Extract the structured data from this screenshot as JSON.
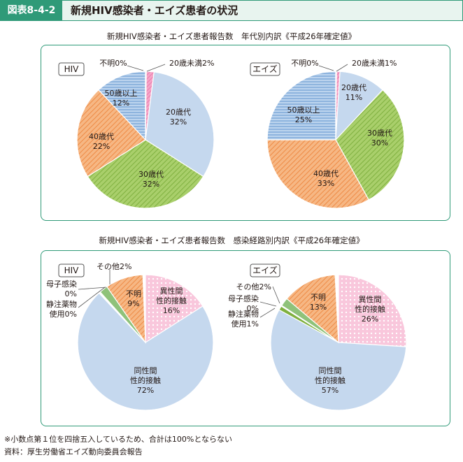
{
  "header": {
    "label": "図表8-4-2",
    "title": "新規HIV感染者・エイズ患者の状況"
  },
  "chart_data": [
    {
      "type": "pie",
      "title": "新規HIV感染者・エイズ患者報告数　年代別内訳《平成26年確定値》",
      "charts": [
        {
          "name": "HIV",
          "slices": [
            {
              "label": "20歳未満",
              "value": 2,
              "text": "20歳未満2%"
            },
            {
              "label": "20歳代",
              "value": 32,
              "text": "20歳代\n32%"
            },
            {
              "label": "30歳代",
              "value": 32,
              "text": "30歳代\n32%"
            },
            {
              "label": "40歳代",
              "value": 22,
              "text": "40歳代\n22%"
            },
            {
              "label": "50歳以上",
              "value": 12,
              "text": "50歳以上\n12%"
            },
            {
              "label": "不明",
              "value": 0,
              "text": "不明0%"
            }
          ]
        },
        {
          "name": "エイズ",
          "slices": [
            {
              "label": "20歳未満",
              "value": 1,
              "text": "20歳未満1%"
            },
            {
              "label": "20歳代",
              "value": 11,
              "text": "20歳代\n11%"
            },
            {
              "label": "30歳代",
              "value": 30,
              "text": "30歳代\n30%"
            },
            {
              "label": "40歳代",
              "value": 33,
              "text": "40歳代\n33%"
            },
            {
              "label": "50歳以上",
              "value": 25,
              "text": "50歳以上\n25%"
            },
            {
              "label": "不明",
              "value": 0,
              "text": "不明0%"
            }
          ]
        }
      ]
    },
    {
      "type": "pie",
      "title": "新規HIV感染者・エイズ患者報告数　感染経路別内訳《平成26年確定値》",
      "charts": [
        {
          "name": "HIV",
          "slices": [
            {
              "label": "異性間性的接触",
              "value": 16,
              "text": "異性間\n性的接触\n16%"
            },
            {
              "label": "同性間性的接触",
              "value": 72,
              "text": "同性間\n性的接触\n72%"
            },
            {
              "label": "静注薬物使用",
              "value": 0,
              "text": "静注薬物\n使用0%"
            },
            {
              "label": "母子感染",
              "value": 0,
              "text": "母子感染\n0%"
            },
            {
              "label": "その他",
              "value": 2,
              "text": "その他2%"
            },
            {
              "label": "不明",
              "value": 9,
              "text": "不明\n9%"
            }
          ]
        },
        {
          "name": "エイズ",
          "slices": [
            {
              "label": "異性間性的接触",
              "value": 26,
              "text": "異性間\n性的接触\n26%"
            },
            {
              "label": "同性間性的接触",
              "value": 57,
              "text": "同性間\n性的接触\n57%"
            },
            {
              "label": "静注薬物使用",
              "value": 1,
              "text": "静注薬物\n使用1%"
            },
            {
              "label": "母子感染",
              "value": 0,
              "text": "母子感染\n0%"
            },
            {
              "label": "その他",
              "value": 2,
              "text": "その他2%"
            },
            {
              "label": "不明",
              "value": 13,
              "text": "不明\n13%"
            }
          ]
        }
      ]
    }
  ],
  "notes": {
    "note1": "※小数点第１位を四捨五入しているため、合計は100%とならない",
    "source": "資料：厚生労働省エイズ動向委員会報告"
  }
}
